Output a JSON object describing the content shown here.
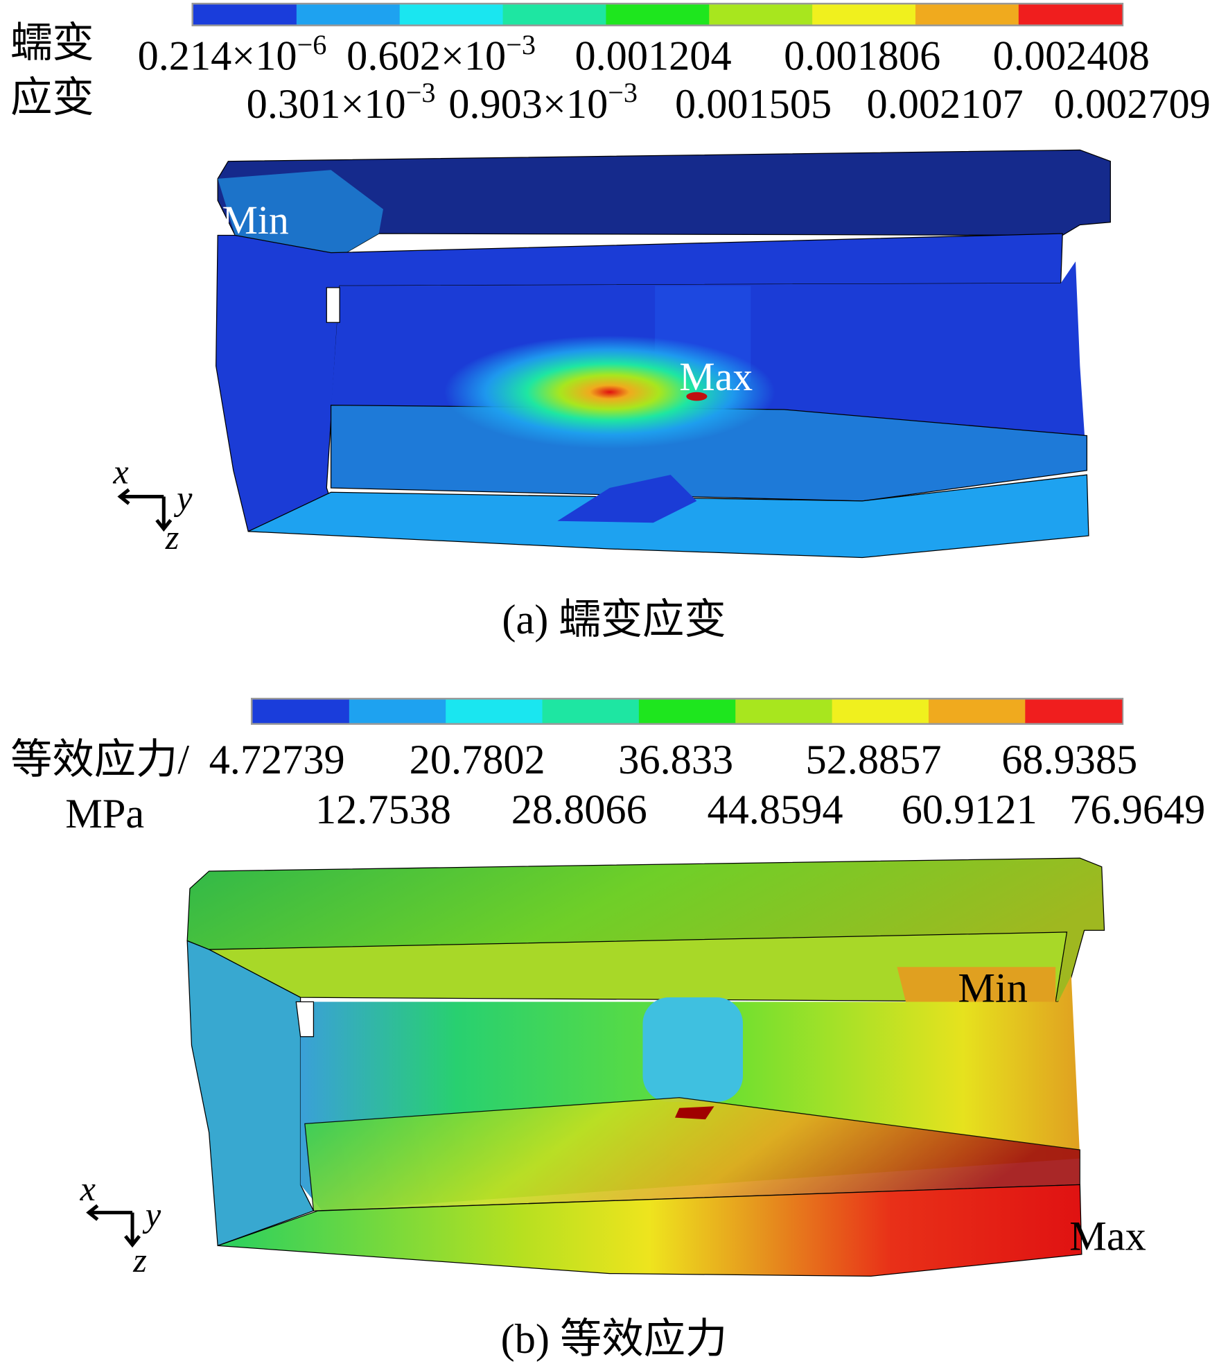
{
  "panels": [
    {
      "legend_title": [
        "蠕变",
        "应变"
      ],
      "legend_colors": [
        "#1a3ddb",
        "#1ea2f0",
        "#1ae6f0",
        "#1ee6a2",
        "#1ee61e",
        "#a8e61e",
        "#f0f01e",
        "#f0aa1e",
        "#f01e1e"
      ],
      "legend_row1": [
        {
          "base": "0.214×10",
          "exp": "−6"
        },
        {
          "base": "0.602×10",
          "exp": "−3"
        },
        {
          "base": "0.001204"
        },
        {
          "base": "0.001806"
        },
        {
          "base": "0.002408"
        }
      ],
      "legend_row2": [
        {
          "base": "0.301×10",
          "exp": "−3"
        },
        {
          "base": "0.903×10",
          "exp": "−3"
        },
        {
          "base": "0.001505"
        },
        {
          "base": "0.002107"
        },
        {
          "base": "0.002709"
        }
      ],
      "min_label": "Min",
      "max_label": "Max",
      "axes": [
        "x",
        "y",
        "z"
      ],
      "caption": "(a) 蠕变应变"
    },
    {
      "legend_title": [
        "等效应力/",
        "MPa"
      ],
      "legend_colors": [
        "#1a3ddb",
        "#1ea2f0",
        "#1ae6f0",
        "#1ee6a2",
        "#1ee61e",
        "#a8e61e",
        "#f0f01e",
        "#f0aa1e",
        "#f01e1e"
      ],
      "legend_row1": [
        {
          "base": "4.72739"
        },
        {
          "base": "20.7802"
        },
        {
          "base": "36.833"
        },
        {
          "base": "52.8857"
        },
        {
          "base": "68.9385"
        }
      ],
      "legend_row2": [
        {
          "base": "12.7538"
        },
        {
          "base": "28.8066"
        },
        {
          "base": "44.8594"
        },
        {
          "base": "60.9121"
        },
        {
          "base": "76.9649"
        }
      ],
      "min_label": "Min",
      "max_label": "Max",
      "axes": [
        "x",
        "y",
        "z"
      ],
      "caption": "(b) 等效应力"
    }
  ]
}
